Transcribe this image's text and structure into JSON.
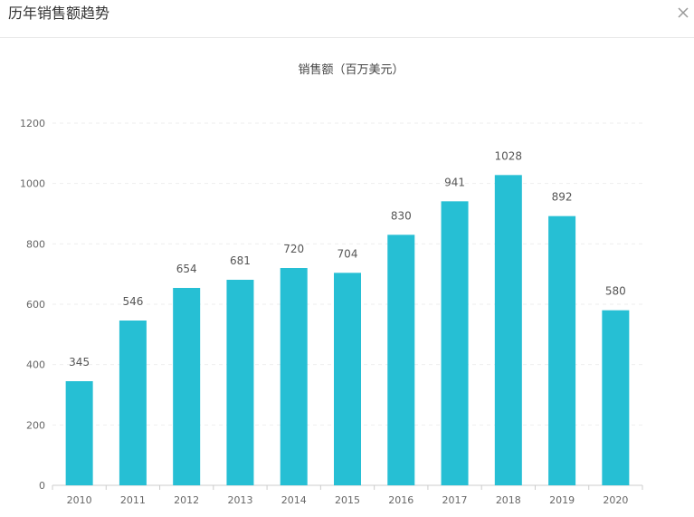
{
  "dialog": {
    "title": "历年销售额趋势"
  },
  "colors": {
    "bar": "#26bfd4",
    "axis": "#cccccc",
    "grid": "#eeeeee",
    "text": "#666666",
    "label": "#555555"
  },
  "chart_data": {
    "type": "bar",
    "title": "销售额（百万美元）",
    "categories": [
      "2010",
      "2011",
      "2012",
      "2013",
      "2014",
      "2015",
      "2016",
      "2017",
      "2018",
      "2019",
      "2020"
    ],
    "values": [
      345,
      546,
      654,
      681,
      720,
      704,
      830,
      941,
      1028,
      892,
      580
    ],
    "ylim": [
      0,
      1200
    ],
    "yticks": [
      0,
      200,
      400,
      600,
      800,
      1000,
      1200
    ],
    "grid": true,
    "data_labels": true
  }
}
